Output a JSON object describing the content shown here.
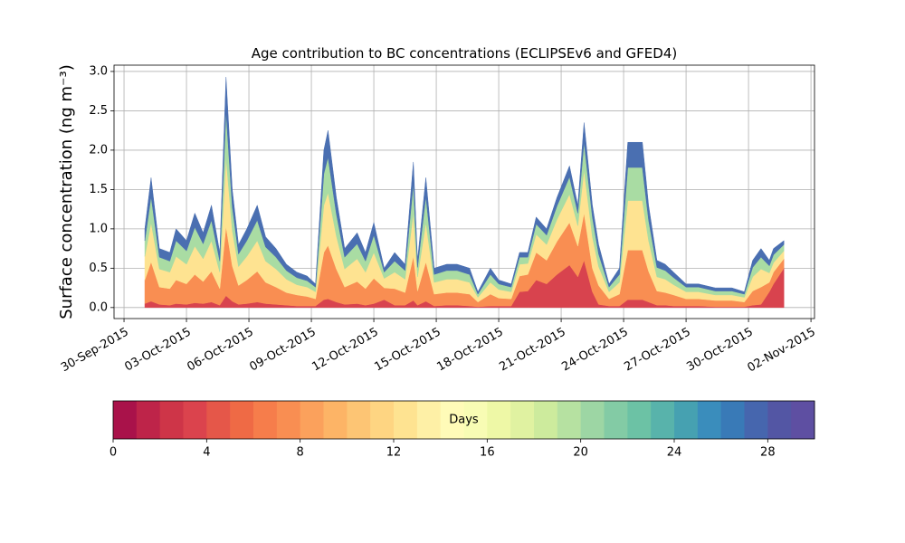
{
  "chart_data": {
    "type": "stacked_area",
    "title": "Age contribution to BC concentrations (ECLIPSEv6 and GFED4)",
    "ylabel": "Surface concentration (ng m⁻³)",
    "grid": true,
    "x": [
      1.0,
      1.3,
      1.7,
      2.2,
      2.5,
      3.0,
      3.4,
      3.8,
      4.2,
      4.6,
      4.9,
      5.2,
      5.5,
      5.9,
      6.4,
      6.8,
      7.3,
      7.8,
      8.3,
      8.8,
      9.2,
      9.6,
      9.8,
      10.2,
      10.6,
      11.2,
      11.6,
      12.0,
      12.5,
      13.0,
      13.5,
      13.9,
      14.1,
      14.5,
      14.9,
      15.5,
      16.0,
      16.6,
      17.0,
      17.6,
      18.0,
      18.6,
      19.0,
      19.4,
      19.8,
      20.3,
      20.8,
      21.4,
      21.8,
      22.1,
      22.5,
      22.8,
      23.3,
      23.8,
      24.2,
      24.9,
      25.2,
      25.6,
      26.0,
      26.4,
      27.0,
      27.6,
      28.4,
      29.2,
      29.8,
      30.2,
      30.6,
      31.0,
      31.2,
      31.7
    ],
    "xlim": [
      -0.48,
      33.17
    ],
    "xticks": [
      {
        "value": 0,
        "label": "30-Sep-2015"
      },
      {
        "value": 3,
        "label": "03-Oct-2015"
      },
      {
        "value": 6,
        "label": "06-Oct-2015"
      },
      {
        "value": 9,
        "label": "09-Oct-2015"
      },
      {
        "value": 12,
        "label": "12-Oct-2015"
      },
      {
        "value": 15,
        "label": "15-Oct-2015"
      },
      {
        "value": 18,
        "label": "18-Oct-2015"
      },
      {
        "value": 21,
        "label": "21-Oct-2015"
      },
      {
        "value": 24,
        "label": "24-Oct-2015"
      },
      {
        "value": 27,
        "label": "27-Oct-2015"
      },
      {
        "value": 30,
        "label": "30-Oct-2015"
      },
      {
        "value": 33,
        "label": "02-Nov-2015"
      }
    ],
    "ylim": [
      -0.14,
      3.08
    ],
    "yticks": [
      {
        "value": 0,
        "label": "0.0"
      },
      0.5,
      {
        "value": 1,
        "label": "1.0"
      },
      1.5,
      {
        "value": 2,
        "label": "2.0"
      },
      2.5,
      {
        "value": 3,
        "label": "3.0"
      }
    ],
    "series": [
      {
        "color": "#d8434e",
        "values": [
          0.05,
          0.08,
          0.04,
          0.03,
          0.05,
          0.04,
          0.06,
          0.05,
          0.07,
          0.03,
          0.15,
          0.08,
          0.04,
          0.05,
          0.07,
          0.05,
          0.04,
          0.03,
          0.02,
          0.02,
          0.02,
          0.1,
          0.11,
          0.07,
          0.04,
          0.05,
          0.03,
          0.05,
          0.1,
          0.03,
          0.03,
          0.09,
          0.03,
          0.08,
          0.02,
          0.03,
          0.03,
          0.02,
          0.01,
          0.02,
          0.02,
          0.02,
          0.2,
          0.21,
          0.35,
          0.3,
          0.42,
          0.54,
          0.39,
          0.6,
          0.2,
          0.04,
          0.02,
          0.02,
          0.1,
          0.1,
          0.07,
          0.03,
          0.03,
          0.02,
          0.02,
          0.02,
          0.01,
          0.01,
          0.01,
          0.03,
          0.04,
          0.2,
          0.3,
          0.5
        ]
      },
      {
        "color": "#f98e52",
        "values": [
          0.3,
          0.5,
          0.22,
          0.21,
          0.3,
          0.26,
          0.36,
          0.28,
          0.39,
          0.21,
          0.88,
          0.45,
          0.24,
          0.3,
          0.39,
          0.27,
          0.22,
          0.16,
          0.14,
          0.12,
          0.09,
          0.6,
          0.68,
          0.42,
          0.22,
          0.28,
          0.21,
          0.32,
          0.15,
          0.21,
          0.16,
          0.56,
          0.18,
          0.5,
          0.15,
          0.16,
          0.16,
          0.15,
          0.06,
          0.15,
          0.1,
          0.09,
          0.2,
          0.21,
          0.35,
          0.3,
          0.42,
          0.54,
          0.39,
          0.6,
          0.3,
          0.24,
          0.09,
          0.15,
          0.63,
          0.63,
          0.39,
          0.18,
          0.16,
          0.14,
          0.09,
          0.09,
          0.08,
          0.08,
          0.06,
          0.18,
          0.22,
          0.12,
          0.15,
          0.12
        ]
      },
      {
        "color": "#fee391",
        "values": [
          0.3,
          0.5,
          0.23,
          0.21,
          0.3,
          0.25,
          0.36,
          0.29,
          0.39,
          0.21,
          0.88,
          0.45,
          0.24,
          0.3,
          0.39,
          0.27,
          0.23,
          0.17,
          0.13,
          0.12,
          0.09,
          0.6,
          0.67,
          0.42,
          0.23,
          0.29,
          0.21,
          0.33,
          0.12,
          0.21,
          0.17,
          0.55,
          0.18,
          0.5,
          0.15,
          0.17,
          0.17,
          0.15,
          0.06,
          0.15,
          0.11,
          0.09,
          0.15,
          0.14,
          0.23,
          0.2,
          0.28,
          0.36,
          0.26,
          0.55,
          0.4,
          0.24,
          0.09,
          0.15,
          0.63,
          0.63,
          0.39,
          0.18,
          0.17,
          0.13,
          0.09,
          0.09,
          0.07,
          0.07,
          0.06,
          0.18,
          0.23,
          0.12,
          0.12,
          0.1
        ]
      },
      {
        "color": "#a9dca3",
        "values": [
          0.2,
          0.33,
          0.15,
          0.14,
          0.2,
          0.17,
          0.24,
          0.19,
          0.26,
          0.14,
          0.58,
          0.3,
          0.16,
          0.2,
          0.26,
          0.18,
          0.15,
          0.11,
          0.09,
          0.08,
          0.06,
          0.4,
          0.45,
          0.28,
          0.15,
          0.19,
          0.14,
          0.22,
          0.08,
          0.14,
          0.11,
          0.37,
          0.12,
          0.33,
          0.1,
          0.11,
          0.11,
          0.1,
          0.04,
          0.1,
          0.07,
          0.06,
          0.09,
          0.08,
          0.13,
          0.12,
          0.17,
          0.22,
          0.16,
          0.35,
          0.25,
          0.16,
          0.06,
          0.1,
          0.42,
          0.42,
          0.26,
          0.12,
          0.11,
          0.09,
          0.06,
          0.06,
          0.05,
          0.05,
          0.04,
          0.12,
          0.15,
          0.09,
          0.1,
          0.08
        ]
      },
      {
        "color": "#4a6fb1",
        "values": [
          0.15,
          0.24,
          0.11,
          0.11,
          0.15,
          0.13,
          0.18,
          0.14,
          0.19,
          0.11,
          0.44,
          0.22,
          0.12,
          0.15,
          0.19,
          0.13,
          0.11,
          0.08,
          0.07,
          0.06,
          0.04,
          0.3,
          0.34,
          0.21,
          0.11,
          0.14,
          0.11,
          0.16,
          0.05,
          0.11,
          0.08,
          0.28,
          0.09,
          0.24,
          0.08,
          0.08,
          0.08,
          0.08,
          0.03,
          0.08,
          0.05,
          0.04,
          0.06,
          0.06,
          0.09,
          0.08,
          0.11,
          0.14,
          0.1,
          0.25,
          0.15,
          0.12,
          0.04,
          0.08,
          0.32,
          0.32,
          0.19,
          0.09,
          0.08,
          0.07,
          0.04,
          0.04,
          0.04,
          0.04,
          0.03,
          0.09,
          0.11,
          0.07,
          0.08,
          0.05
        ]
      }
    ],
    "colorbar": {
      "label": "Days",
      "lim": [
        0,
        30
      ],
      "ticks": [
        0,
        4,
        8,
        12,
        16,
        20,
        24,
        28
      ],
      "colors": [
        "#a9124a",
        "#be2449",
        "#ce3548",
        "#db434d",
        "#e55749",
        "#ef6a45",
        "#f67d4b",
        "#f98e52",
        "#fba15c",
        "#fdb466",
        "#fdc574",
        "#fed582",
        "#fee391",
        "#fef0a6",
        "#fffbb8",
        "#f8fcb4",
        "#eef8a6",
        "#e0f2a1",
        "#cdeb9d",
        "#b6e1a1",
        "#9dd6a4",
        "#83cba5",
        "#6cc2a5",
        "#58b3ab",
        "#46a1b1",
        "#3a8dbc",
        "#397ab7",
        "#4666ae",
        "#5356a4",
        "#5e4fa2"
      ]
    }
  }
}
